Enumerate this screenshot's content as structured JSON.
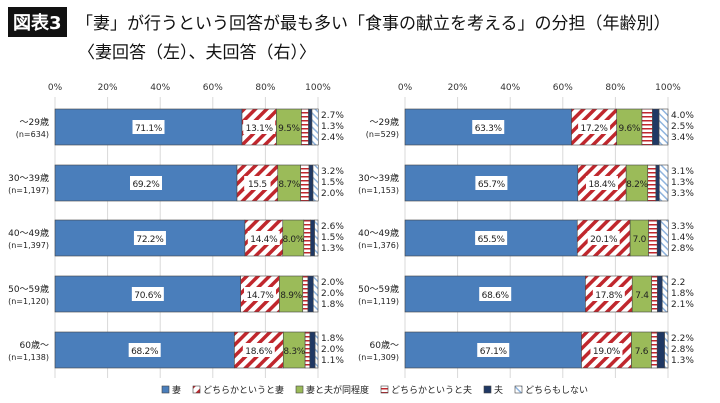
{
  "header": {
    "figure_label": "図表3",
    "title": "「妻」が行うという回答が最も多い「食事の献立を考える」の分担（年齢別）",
    "subtitle": "〈妻回答（左）、夫回答（右）〉"
  },
  "chart_data": [
    {
      "type": "bar",
      "orientation": "horizontal",
      "stacked": true,
      "title": "妻回答",
      "xlim": [
        0,
        100
      ],
      "xticks": [
        "0%",
        "20%",
        "40%",
        "60%",
        "80%",
        "100%"
      ],
      "categories": [
        [
          "～29歳",
          "(n=634)"
        ],
        [
          "30～39歳",
          "(n=1,197)"
        ],
        [
          "40～49歳",
          "(n=1,397)"
        ],
        [
          "50～59歳",
          "(n=1,120)"
        ],
        [
          "60歳～",
          "(n=1,138)"
        ]
      ],
      "series": [
        {
          "name": "妻",
          "values": [
            71.1,
            69.2,
            72.2,
            70.6,
            68.2
          ]
        },
        {
          "name": "どちらかというと妻",
          "values": [
            13.1,
            15.5,
            14.4,
            14.7,
            18.6
          ]
        },
        {
          "name": "妻と夫が同程度",
          "values": [
            9.5,
            8.7,
            8.0,
            8.9,
            8.3
          ]
        },
        {
          "name": "どちらかというと夫",
          "values": [
            2.7,
            3.2,
            2.6,
            2.0,
            1.8
          ]
        },
        {
          "name": "夫",
          "values": [
            1.3,
            1.5,
            1.5,
            2.0,
            2.0
          ]
        },
        {
          "name": "どちらもしない",
          "values": [
            2.4,
            2.0,
            1.3,
            1.8,
            1.1
          ]
        }
      ],
      "labels": [
        [
          "71.1%",
          "13.1%",
          "9.5%",
          "2.7%",
          "1.3%",
          "2.4%"
        ],
        [
          "69.2%",
          "15.5",
          "8.7%",
          "3.2%",
          "1.5%",
          "2.0%"
        ],
        [
          "72.2%",
          "14.4%",
          "8.0%",
          "2.6%",
          "1.5%",
          "1.3%"
        ],
        [
          "70.6%",
          "14.7%",
          "8.9%",
          "2.0%",
          "2.0%",
          "1.8%"
        ],
        [
          "68.2%",
          "18.6%",
          "8.3%",
          "1.8%",
          "2.0%",
          "1.1%"
        ]
      ]
    },
    {
      "type": "bar",
      "orientation": "horizontal",
      "stacked": true,
      "title": "夫回答",
      "xlim": [
        0,
        100
      ],
      "xticks": [
        "0%",
        "20%",
        "40%",
        "60%",
        "80%",
        "100%"
      ],
      "categories": [
        [
          "～29歳",
          "(n=529)"
        ],
        [
          "30～39歳",
          "(n=1,153)"
        ],
        [
          "40～49歳",
          "(n=1,376)"
        ],
        [
          "50～59歳",
          "(n=1,119)"
        ],
        [
          "60歳～",
          "(n=1,309)"
        ]
      ],
      "series": [
        {
          "name": "妻",
          "values": [
            63.3,
            65.7,
            65.5,
            68.6,
            67.1
          ]
        },
        {
          "name": "どちらかというと妻",
          "values": [
            17.2,
            18.4,
            20.1,
            17.8,
            19.0
          ]
        },
        {
          "name": "妻と夫が同程度",
          "values": [
            9.6,
            8.2,
            7.0,
            7.4,
            7.6
          ]
        },
        {
          "name": "どちらかというと夫",
          "values": [
            4.0,
            3.1,
            3.3,
            2.2,
            2.2
          ]
        },
        {
          "name": "夫",
          "values": [
            2.5,
            1.3,
            1.4,
            1.8,
            2.8
          ]
        },
        {
          "name": "どちらもしない",
          "values": [
            3.4,
            3.3,
            2.8,
            2.1,
            1.3
          ]
        }
      ],
      "labels": [
        [
          "63.3%",
          "17.2%",
          "9.6%",
          "4.0%",
          "2.5%",
          "3.4%"
        ],
        [
          "65.7%",
          "18.4%",
          "8.2%",
          "3.1%",
          "1.3%",
          "3.3%"
        ],
        [
          "65.5%",
          "20.1%",
          "7.0",
          "3.3%",
          "1.4%",
          "2.8%"
        ],
        [
          "68.6%",
          "17.8%",
          "7.4",
          "2.2",
          "1.8%",
          "2.1%"
        ],
        [
          "67.1%",
          "19.0%",
          "7.6",
          "2.2%",
          "2.8%",
          "1.3%"
        ]
      ]
    }
  ],
  "legend": {
    "position": "bottom",
    "items": [
      "妻",
      "どちらかというと妻",
      "妻と夫が同程度",
      "どちらかというと夫",
      "夫",
      "どちらもしない"
    ]
  },
  "colors": {
    "wife": "#4a7ebb",
    "rather_wife": "#c0272d",
    "equal": "#9bbb59",
    "rather_husband": "#c0272d",
    "husband": "#1f3864",
    "neither": "#8fb4de"
  }
}
